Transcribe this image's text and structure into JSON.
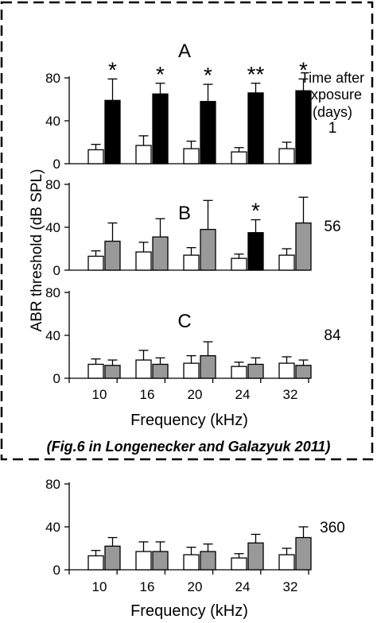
{
  "caption": "(Fig.6 in Longenecker and Galazyuk 2011)",
  "time_header": [
    "Time after",
    "exposure",
    "(days)"
  ],
  "ylabel": "ABR threshold (dB SPL)",
  "xlabel": "Frequency (kHz)",
  "colors": {
    "control": "#ffffff",
    "exposed": "#999999",
    "significant": "#000000"
  },
  "chart_data": [
    {
      "type": "bar",
      "panel": "A",
      "days": "1",
      "categories": [
        "10",
        "16",
        "20",
        "24",
        "32"
      ],
      "ylim": [
        0,
        80
      ],
      "yticks": [
        "0",
        "40",
        "80"
      ],
      "show_x_ticks": false,
      "series": [
        {
          "role": "control",
          "values": [
            13,
            17,
            14,
            11,
            14
          ],
          "errors": [
            5,
            9,
            7,
            4,
            6
          ]
        },
        {
          "role": "exposed",
          "values": [
            59,
            65,
            58,
            66,
            68
          ],
          "errors": [
            20,
            10,
            16,
            9,
            11
          ],
          "colors": [
            "#000000",
            "#000000",
            "#000000",
            "#000000",
            "#000000"
          ],
          "markers": [
            "*",
            "*",
            "*",
            "**",
            "*"
          ]
        }
      ]
    },
    {
      "type": "bar",
      "panel": "B",
      "days": "56",
      "categories": [
        "10",
        "16",
        "20",
        "24",
        "32"
      ],
      "ylim": [
        0,
        80
      ],
      "yticks": [
        "0",
        "40",
        "80"
      ],
      "show_x_ticks": false,
      "series": [
        {
          "role": "control",
          "values": [
            13,
            17,
            14,
            11,
            14
          ],
          "errors": [
            5,
            9,
            7,
            4,
            6
          ]
        },
        {
          "role": "exposed",
          "values": [
            27,
            31,
            38,
            35,
            44
          ],
          "errors": [
            17,
            17,
            27,
            12,
            24
          ],
          "colors": [
            "#999999",
            "#999999",
            "#999999",
            "#000000",
            "#999999"
          ],
          "markers": [
            "",
            "",
            "",
            "*",
            ""
          ]
        }
      ]
    },
    {
      "type": "bar",
      "panel": "C",
      "days": "84",
      "categories": [
        "10",
        "16",
        "20",
        "24",
        "32"
      ],
      "ylim": [
        0,
        80
      ],
      "yticks": [
        "0",
        "40",
        "80"
      ],
      "show_x_ticks": true,
      "series": [
        {
          "role": "control",
          "values": [
            13,
            17,
            14,
            11,
            14
          ],
          "errors": [
            5,
            9,
            7,
            4,
            6
          ]
        },
        {
          "role": "exposed",
          "values": [
            12,
            13,
            21,
            13,
            12
          ],
          "errors": [
            5,
            6,
            13,
            6,
            5
          ],
          "colors": [
            "#999999",
            "#999999",
            "#999999",
            "#999999",
            "#999999"
          ],
          "markers": [
            "",
            "",
            "",
            "",
            ""
          ]
        }
      ]
    },
    {
      "type": "bar",
      "panel": "",
      "days": "360",
      "categories": [
        "10",
        "16",
        "20",
        "24",
        "32"
      ],
      "ylim": [
        0,
        80
      ],
      "yticks": [
        "0",
        "40",
        "80"
      ],
      "show_x_ticks": true,
      "series": [
        {
          "role": "control",
          "values": [
            13,
            17,
            14,
            11,
            14
          ],
          "errors": [
            5,
            9,
            7,
            4,
            6
          ]
        },
        {
          "role": "exposed",
          "values": [
            22,
            17,
            17,
            25,
            30
          ],
          "errors": [
            8,
            9,
            7,
            8,
            10
          ],
          "colors": [
            "#999999",
            "#999999",
            "#999999",
            "#999999",
            "#999999"
          ],
          "markers": [
            "",
            "",
            "",
            "",
            ""
          ]
        }
      ]
    }
  ]
}
